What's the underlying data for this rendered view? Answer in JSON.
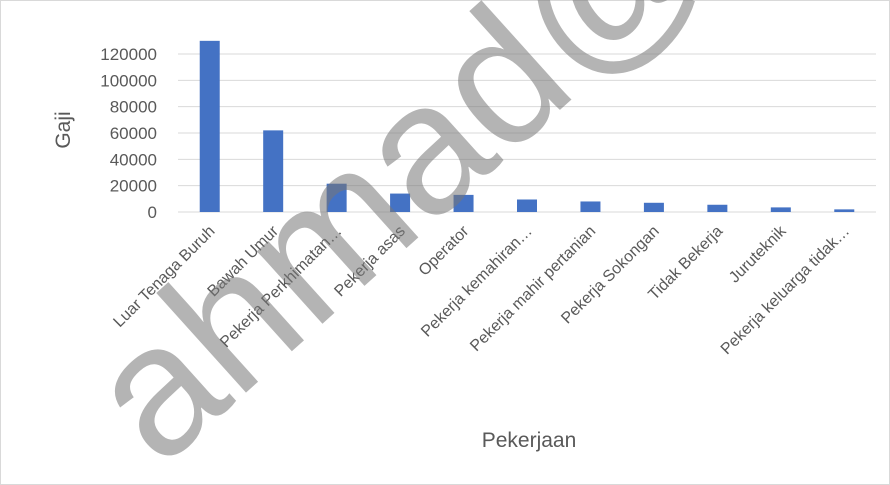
{
  "chart_data": {
    "type": "bar",
    "title": "",
    "xlabel": "Pekerjaan",
    "ylabel": "Gaji",
    "categories": [
      "Luar Tenaga Buruh",
      "Bawah Umur",
      "Pekerja Perkhimatan…",
      "Pekerja asas",
      "Operator",
      "Pekerja kemahiran…",
      "Pekerja mahir pertanian",
      "Pekerja Sokongan",
      "Tidak Bekerja",
      "Juruteknik",
      "Pekerja keluarga tidak…"
    ],
    "series": [
      {
        "values": [
          130000,
          62000,
          21500,
          14000,
          13000,
          9500,
          8000,
          7000,
          5500,
          3500,
          2000
        ]
      }
    ],
    "ylim": [
      0,
      120000
    ],
    "yticks": [
      "0",
      "20000",
      "40000",
      "60000",
      "80000",
      "100000",
      "120000"
    ],
    "grid": true,
    "legend": "none",
    "colors": {
      "bar": "#4472C4",
      "grid": "#D9D9D9",
      "text": "#595959",
      "border": "#D9D9D9"
    }
  },
  "watermark": "ahmad@FTSM"
}
